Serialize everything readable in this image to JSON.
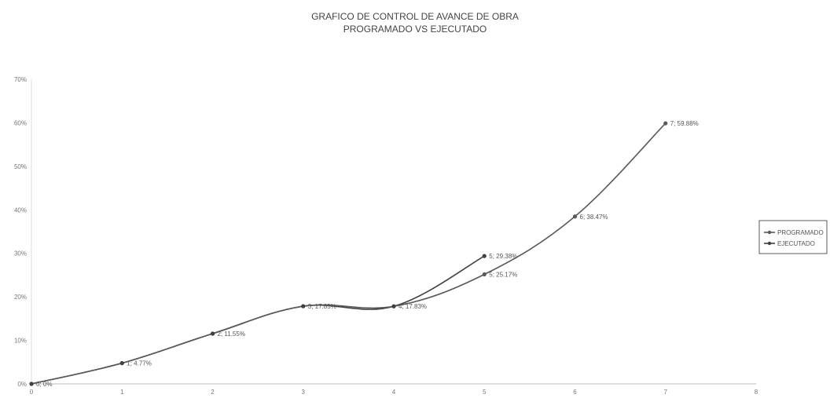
{
  "chart_data": {
    "type": "line",
    "title": "GRAFICO DE CONTROL DE AVANCE DE OBRA",
    "subtitle": "PROGRAMADO  VS  EJECUTADO",
    "xlabel": "",
    "ylabel": "",
    "xlim": [
      0,
      8
    ],
    "ylim": [
      0,
      70
    ],
    "x_ticks": [
      "0",
      "1",
      "2",
      "3",
      "4",
      "5",
      "6",
      "7",
      "8"
    ],
    "y_ticks": [
      "0%",
      "10%",
      "20%",
      "30%",
      "40%",
      "50%",
      "60%",
      "70%"
    ],
    "grid": false,
    "legend_position": "right",
    "series": [
      {
        "name": "PROGRAMADO",
        "color": "#595959",
        "points": [
          {
            "x": 0,
            "y": 0,
            "label": "0; 0%"
          },
          {
            "x": 1,
            "y": 4.77,
            "label": "1; 4.77%"
          },
          {
            "x": 2,
            "y": 11.55,
            "label": "2; 11.55%"
          },
          {
            "x": 3,
            "y": 17.85,
            "label": "3; 17.85%"
          },
          {
            "x": 4,
            "y": 17.83,
            "label": "4; 17.83%"
          },
          {
            "x": 5,
            "y": 25.17,
            "label": "5; 25.17%"
          },
          {
            "x": 6,
            "y": 38.47,
            "label": "6; 38.47%"
          },
          {
            "x": 7,
            "y": 59.88,
            "label": "7; 59.88%"
          }
        ]
      },
      {
        "name": "EJECUTADO",
        "color": "#404040",
        "points": [
          {
            "x": 0,
            "y": 0,
            "label": ""
          },
          {
            "x": 1,
            "y": 4.77,
            "label": ""
          },
          {
            "x": 2,
            "y": 11.55,
            "label": ""
          },
          {
            "x": 3,
            "y": 17.85,
            "label": ""
          },
          {
            "x": 4,
            "y": 17.83,
            "label": ""
          },
          {
            "x": 5,
            "y": 29.38,
            "label": "5; 29.38%"
          }
        ]
      }
    ]
  }
}
